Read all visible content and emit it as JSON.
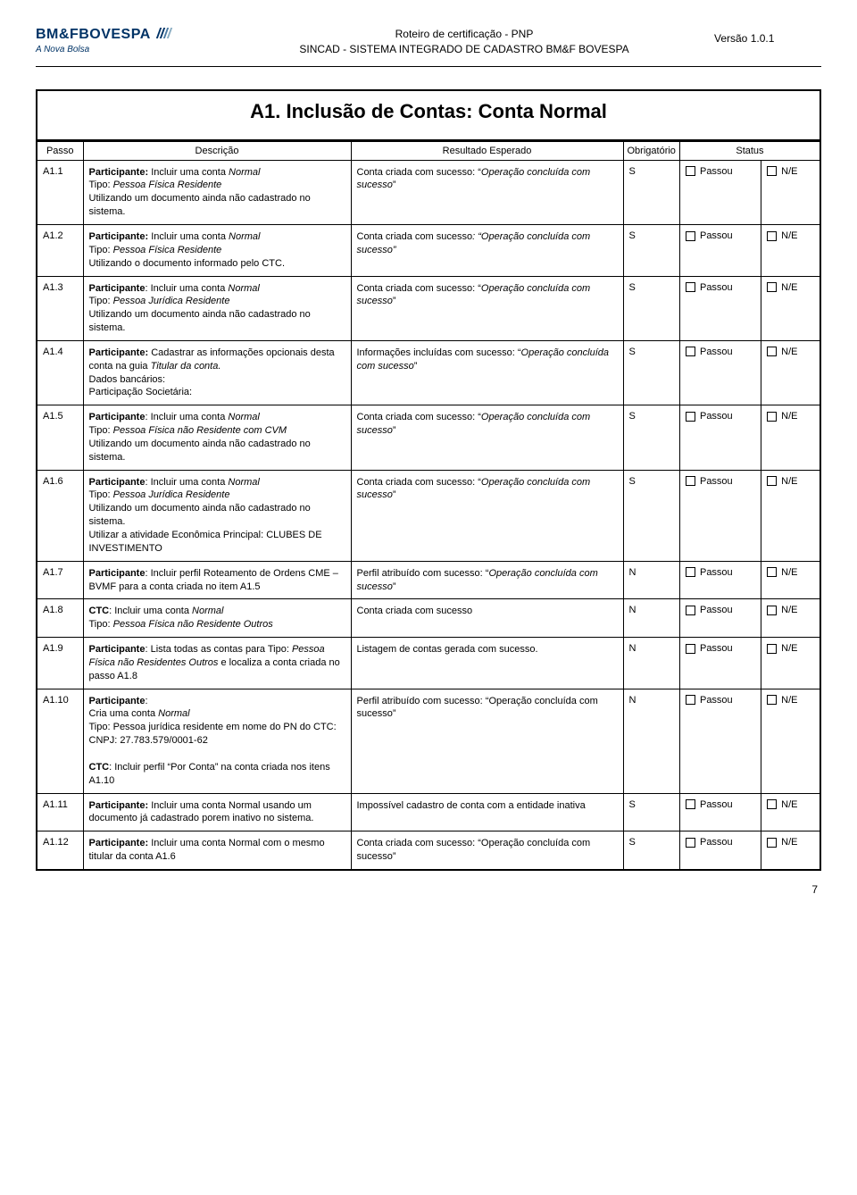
{
  "header": {
    "logo_main": "BM&FBOVESPA",
    "logo_sub": "A Nova Bolsa",
    "line1": "Roteiro de certificação - PNP",
    "line2": "SINCAD - SISTEMA INTEGRADO DE CADASTRO BM&F BOVESPA",
    "version": "Versão 1.0.1"
  },
  "section_title": "A1. Inclusão de Contas: Conta Normal",
  "table": {
    "headers": {
      "passo": "Passo",
      "descricao": "Descrição",
      "resultado": "Resultado Esperado",
      "obrig": "Obrigatório",
      "status": "Status",
      "passou": "Passou",
      "ne": "N/E"
    }
  },
  "rows": [
    {
      "passo": "A1.1",
      "desc_html": "<span class='bold'>Participante:</span> Incluir uma conta <span class='italic'>Normal</span><br>Tipo: <span class='italic'>Pessoa Física Residente</span><br>Utilizando um documento ainda não cadastrado no sistema.",
      "res_html": "Conta criada com sucesso: “<span class='italic'>Operação concluída com sucesso</span>”",
      "obr": "S"
    },
    {
      "passo": "A1.2",
      "desc_html": "<span class='bold'>Participante:</span> Incluir uma conta <span class='italic'>Normal</span><br>Tipo: <span class='italic'>Pessoa Física Residente</span><br>Utilizando o documento informado pelo CTC.",
      "res_html": "Conta criada com sucesso<span class='italic'>: “Operação concluída com sucesso”</span>",
      "obr": "S"
    },
    {
      "passo": "A1.3",
      "desc_html": "<span class='bold'>Participante</span>: Incluir uma conta <span class='italic'>Normal</span><br>Tipo: <span class='italic'>Pessoa Jurídica Residente</span><br>Utilizando um documento ainda não cadastrado no sistema.",
      "res_html": "Conta criada com sucesso: “<span class='italic'>Operação concluída com sucesso</span>”",
      "obr": "S"
    },
    {
      "passo": "A1.4",
      "desc_html": "<span class='bold'>Participante: </span>Cadastrar as informações opcionais desta conta na guia <span class='italic'>Titular da conta.</span><br>Dados bancários:<br>Participação Societária:",
      "res_html": "Informações incluídas com sucesso: “<span class='italic'>Operação concluída com sucesso</span>”",
      "obr": "S"
    },
    {
      "passo": "A1.5",
      "desc_html": "<span class='bold'>Participante</span>: Incluir uma conta <span class='italic'>Normal</span><br>Tipo: <span class='italic'>Pessoa Física não Residente com CVM</span><br>Utilizando um documento ainda não cadastrado no sistema.",
      "res_html": "Conta criada com sucesso: “<span class='italic'>Operação concluída com sucesso</span>”",
      "obr": "S"
    },
    {
      "passo": "A1.6",
      "desc_html": "<span class='bold'>Participante</span>: Incluir uma conta <span class='italic'>Normal</span><br>Tipo: <span class='italic'>Pessoa Jurídica Residente</span><br>Utilizando um documento ainda não cadastrado no sistema.<br>Utilizar a atividade Econômica Principal: CLUBES DE INVESTIMENTO",
      "res_html": "Conta criada com sucesso: “<span class='italic'>Operação concluída com sucesso</span>”",
      "obr": "S"
    },
    {
      "passo": "A1.7",
      "desc_html": "<span class='bold'>Participante</span>: Incluir perfil Roteamento de Ordens CME – BVMF para a conta criada no item A1.5",
      "res_html": "Perfil atribuído com sucesso: “<span class='italic'>Operação concluída com sucesso</span>”",
      "obr": "N"
    },
    {
      "passo": "A1.8",
      "desc_html": "<span class='bold'>CTC</span>: Incluir uma conta <span class='italic'>Normal</span><br>Tipo: <span class='italic'>Pessoa Física não Residente Outros</span>",
      "res_html": "Conta criada com sucesso",
      "obr": "N"
    },
    {
      "passo": "A1.9",
      "desc_html": "<span class='bold'>Participante</span>: Lista todas as contas para Tipo: <span class='italic'>Pessoa Física não Residentes Outros</span> e localiza a conta criada no passo A1.8",
      "res_html": "Listagem de contas gerada com sucesso.",
      "obr": "N"
    },
    {
      "passo": "A1.10",
      "desc_html": "<span class='bold'>Participante</span>:<br>Cria uma conta <span class='italic'>Normal</span><br>Tipo: Pessoa jurídica residente em nome do PN do CTC:<br>CNPJ: 27.783.579/0001-62<br><br><span class='bold'>CTC</span>: Incluir perfil “Por Conta” na conta criada nos itens A1.10",
      "res_html": "Perfil atribuído com sucesso: “Operação concluída com sucesso”",
      "obr": "N"
    },
    {
      "passo": "A1.11",
      "desc_html": "<span class='bold'>Participante:</span> Incluir uma conta Normal usando um documento já cadastrado porem inativo no sistema.",
      "res_html": "Impossível cadastro de conta com a entidade inativa",
      "obr": "S"
    },
    {
      "passo": "A1.12",
      "desc_html": "<span class='bold'>Participante:</span> Incluir uma conta Normal com o mesmo titular da conta A1.6",
      "res_html": "Conta criada com sucesso: “Operação concluída com sucesso”",
      "obr": "S"
    }
  ],
  "page_number": "7"
}
